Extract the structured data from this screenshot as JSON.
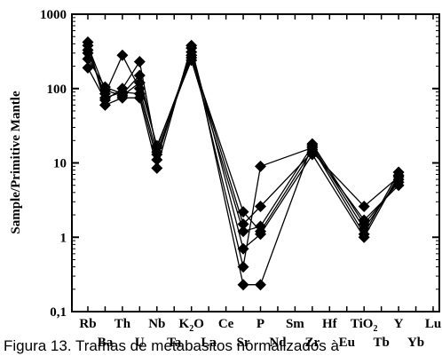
{
  "caption": "Figura 13. Tramas de metabasitos normalizados à",
  "chart_data": {
    "type": "line",
    "title": "",
    "ylabel": "Sample/Primitive Mantle",
    "xlabel": "",
    "yscale": "log",
    "ylim": [
      0.1,
      1000
    ],
    "yticks": [
      "0,1",
      "1",
      "10",
      "100",
      "1000"
    ],
    "categories": [
      "Rb",
      "Ba",
      "Th",
      "U",
      "Nb",
      "Ta",
      "K2O",
      "La",
      "Ce",
      "Sr",
      "P",
      "Nd",
      "Sm",
      "Zr",
      "Hf",
      "Eu",
      "TiO2",
      "Tb",
      "Y",
      "Yb",
      "Lu"
    ],
    "category_display": [
      {
        "base": "Rb"
      },
      {
        "base": "Ba"
      },
      {
        "base": "Th"
      },
      {
        "base": "U"
      },
      {
        "base": "Nb"
      },
      {
        "base": "Ta"
      },
      {
        "base": "K",
        "sub": "2",
        "tail": "O"
      },
      {
        "base": "La"
      },
      {
        "base": "Ce"
      },
      {
        "base": "Sr"
      },
      {
        "base": "P"
      },
      {
        "base": "Nd"
      },
      {
        "base": "Sm"
      },
      {
        "base": "Zr"
      },
      {
        "base": "Hf"
      },
      {
        "base": "Eu"
      },
      {
        "base": "TiO",
        "sub": "2",
        "tail": ""
      },
      {
        "base": "Tb"
      },
      {
        "base": "Y"
      },
      {
        "base": "Yb"
      },
      {
        "base": "Lu"
      }
    ],
    "marker": "diamond",
    "color": "#000000",
    "grid": false,
    "legend": "none",
    "series": [
      {
        "values": [
          420,
          60,
          75,
          75,
          8.5,
          null,
          380,
          null,
          null,
          0.23,
          0.23,
          null,
          null,
          18,
          null,
          null,
          1.5,
          null,
          5.5,
          null,
          null
        ]
      },
      {
        "values": [
          300,
          85,
          280,
          100,
          13,
          null,
          310,
          null,
          null,
          0.4,
          9,
          null,
          null,
          16,
          null,
          null,
          1.1,
          null,
          7.5,
          null,
          null
        ]
      },
      {
        "values": [
          250,
          105,
          85,
          150,
          16,
          null,
          280,
          null,
          null,
          1.5,
          2.6,
          null,
          null,
          14,
          null,
          null,
          2.6,
          null,
          6.5,
          null,
          null
        ]
      },
      {
        "values": [
          190,
          70,
          100,
          230,
          14,
          null,
          260,
          null,
          null,
          2.2,
          1.2,
          null,
          null,
          15,
          null,
          null,
          1.7,
          null,
          5.0,
          null,
          null
        ]
      },
      {
        "values": [
          380,
          95,
          80,
          120,
          17,
          null,
          240,
          null,
          null,
          1.2,
          1.4,
          null,
          null,
          17,
          null,
          null,
          1.3,
          null,
          6.0,
          null,
          null
        ]
      },
      {
        "values": [
          330,
          75,
          90,
          85,
          11,
          null,
          350,
          null,
          null,
          0.7,
          1.1,
          null,
          null,
          13,
          null,
          null,
          1.0,
          null,
          6.8,
          null,
          null
        ]
      }
    ]
  }
}
